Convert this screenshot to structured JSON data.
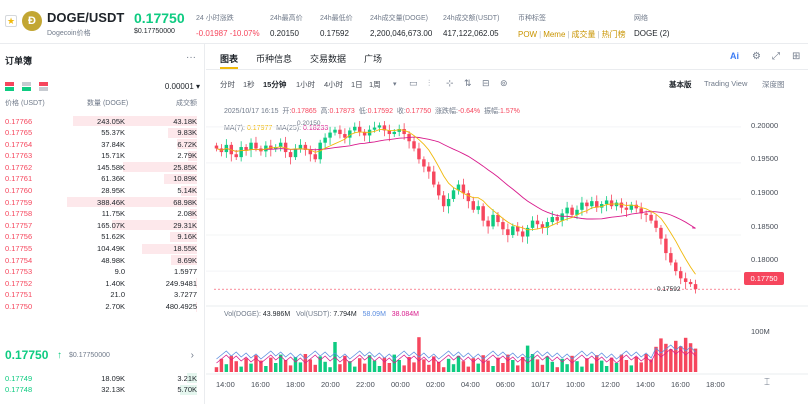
{
  "header": {
    "star": "★",
    "coin_glyph": "Ð",
    "pair": "DOGE/USDT",
    "pair_sub": "Dogecoin价格",
    "last_price": "0.17750",
    "last_price_usd": "$0.17750000",
    "stats": [
      {
        "label": "24 小时涨跌",
        "value": "-0.01987 -10.07%"
      },
      {
        "label": "24h最高价",
        "value": "0.20150"
      },
      {
        "label": "24h最低价",
        "value": "0.17592"
      },
      {
        "label": "24h成交量(DOGE)",
        "value": "2,200,046,673.00"
      },
      {
        "label": "24h成交额(USDT)",
        "value": "417,122,062.05"
      },
      {
        "label": "币种标签",
        "tags": [
          "POW",
          "Meme",
          "成交量",
          "热门榜"
        ]
      },
      {
        "label": "网络",
        "value": "DOGE (2)"
      }
    ]
  },
  "orderbook": {
    "title": "订单簿",
    "more": "···",
    "step": "0.00001 ▾",
    "headers": {
      "price": "价格 (USDT)",
      "qty": "数量 (DOGE)",
      "total": "成交额"
    },
    "asks": [
      {
        "price": "0.17766",
        "qty": "243.05K",
        "total": "43.18K",
        "depth": 0.95
      },
      {
        "price": "0.17765",
        "qty": "55.37K",
        "total": "9.83K",
        "depth": 0.22
      },
      {
        "price": "0.17764",
        "qty": "37.84K",
        "total": "6.72K",
        "depth": 0.15
      },
      {
        "price": "0.17763",
        "qty": "15.71K",
        "total": "2.79K",
        "depth": 0.07
      },
      {
        "price": "0.17762",
        "qty": "145.58K",
        "total": "25.85K",
        "depth": 0.57
      },
      {
        "price": "0.17761",
        "qty": "61.36K",
        "total": "10.89K",
        "depth": 0.25
      },
      {
        "price": "0.17760",
        "qty": "28.95K",
        "total": "5.14K",
        "depth": 0.12
      },
      {
        "price": "0.17759",
        "qty": "388.46K",
        "total": "68.98K",
        "depth": 1.0
      },
      {
        "price": "0.17758",
        "qty": "11.75K",
        "total": "2.08K",
        "depth": 0.05
      },
      {
        "price": "0.17757",
        "qty": "165.07K",
        "total": "29.31K",
        "depth": 0.65
      },
      {
        "price": "0.17756",
        "qty": "51.62K",
        "total": "9.16K",
        "depth": 0.21
      },
      {
        "price": "0.17755",
        "qty": "104.49K",
        "total": "18.55K",
        "depth": 0.42
      },
      {
        "price": "0.17754",
        "qty": "48.98K",
        "total": "8.69K",
        "depth": 0.2
      },
      {
        "price": "0.17753",
        "qty": "9.0",
        "total": "1.5977",
        "depth": 0.0
      },
      {
        "price": "0.17752",
        "qty": "1.40K",
        "total": "249.9481",
        "depth": 0.01
      },
      {
        "price": "0.17751",
        "qty": "21.0",
        "total": "3.7277",
        "depth": 0.0
      },
      {
        "price": "0.17750",
        "qty": "2.70K",
        "total": "480.4925",
        "depth": 0.01
      }
    ],
    "mid": {
      "price": "0.17750",
      "arrow": "↑",
      "usd": "$0.17750000",
      "chevron": "›"
    },
    "bids": [
      {
        "price": "0.17749",
        "qty": "18.09K",
        "total": "3.21K",
        "depth": 0.08
      },
      {
        "price": "0.17748",
        "qty": "32.13K",
        "total": "5.70K",
        "depth": 0.13
      }
    ]
  },
  "chart_panel": {
    "tabs": [
      "图表",
      "币种信息",
      "交易数据",
      "广场"
    ],
    "tab_icons": {
      "ai": "Ai",
      "settings": "⚙",
      "expand": "⤢",
      "grid": "⊞"
    },
    "intervals": [
      "分时",
      "1秒",
      "15分钟",
      "1小时",
      "4小时",
      "1日",
      "1周"
    ],
    "active_interval": "15分钟",
    "interval_more": "▾",
    "views": [
      "基本版",
      "Trading View",
      "深度图"
    ],
    "active_view": "基本版",
    "ohlc": {
      "time": "2025/10/17 16:15",
      "open_label": "开:",
      "open": "0.17865",
      "high_label": "高:",
      "high": "0.17873",
      "low_label": "低:",
      "low": "0.17592",
      "close_label": "收:",
      "close": "0.17750",
      "change_label": "涨跌幅:",
      "change": "-0.64%",
      "amp_label": "振幅:",
      "amp": "1.57%"
    },
    "ma_legend": {
      "ma7_label": "MA(7):",
      "ma7": "0.17977",
      "ma25_label": "MA(25):",
      "ma25": "0.18233"
    },
    "vol_legend": {
      "doge_label": "Vol(DOGE):",
      "doge": "43.986M",
      "usdt_label": "Vol(USDT):",
      "usdt": "7.794M",
      "v1": "58.09M",
      "v2": "38.084M"
    },
    "y_axis": [
      "0.20000",
      "0.19500",
      "0.19000",
      "0.18500",
      "0.18000"
    ],
    "y_vol": "100M",
    "current_price_tag": "0.17750",
    "low_marker": "0.17592",
    "high_marker": "0.20150",
    "x_axis": [
      "14:00",
      "16:00",
      "18:00",
      "20:00",
      "22:00",
      "00:00",
      "02:00",
      "04:00",
      "06:00",
      "10/17",
      "10:00",
      "12:00",
      "14:00",
      "16:00",
      "18:00"
    ],
    "colors": {
      "up": "#0ecb81",
      "down": "#f6465d",
      "ma7": "#f0b90b",
      "ma25": "#d81b8c"
    }
  },
  "chart_data": {
    "type": "candlestick",
    "x": [
      "14:00",
      "16:00",
      "18:00",
      "20:00",
      "22:00",
      "00:00",
      "02:00",
      "04:00",
      "06:00",
      "10/17",
      "10:00",
      "12:00",
      "14:00",
      "16:00",
      "18:00"
    ],
    "ylim": [
      0.176,
      0.2015
    ],
    "close_path": [
      0.197,
      0.1965,
      0.1975,
      0.1962,
      0.1958,
      0.1972,
      0.1968,
      0.1978,
      0.197,
      0.1966,
      0.1974,
      0.1969,
      0.1972,
      0.1978,
      0.1965,
      0.1958,
      0.197,
      0.1975,
      0.1968,
      0.1962,
      0.1955,
      0.1978,
      0.1985,
      0.1992,
      0.1996,
      0.199,
      0.1985,
      0.1995,
      0.2,
      0.1993,
      0.1988,
      0.1996,
      0.1999,
      0.2002,
      0.1995,
      0.199,
      0.1993,
      0.1997,
      0.199,
      0.198,
      0.197,
      0.1955,
      0.1945,
      0.1938,
      0.192,
      0.1905,
      0.189,
      0.19,
      0.1912,
      0.192,
      0.1908,
      0.1897,
      0.1885,
      0.189,
      0.187,
      0.1862,
      0.1878,
      0.1868,
      0.1858,
      0.185,
      0.1862,
      0.1855,
      0.1848,
      0.186,
      0.187,
      0.1865,
      0.186,
      0.1868,
      0.1875,
      0.187,
      0.188,
      0.1888,
      0.1878,
      0.1885,
      0.1895,
      0.189,
      0.1897,
      0.1888,
      0.1893,
      0.1898,
      0.189,
      0.1895,
      0.1888,
      0.1885,
      0.1892,
      0.1887,
      0.188,
      0.1878,
      0.187,
      0.186,
      0.1845,
      0.1825,
      0.1812,
      0.18,
      0.179,
      0.1785,
      0.1782,
      0.1775
    ],
    "series": [
      {
        "name": "MA(7)",
        "value": 0.17977
      },
      {
        "name": "MA(25)",
        "value": 0.18233
      }
    ],
    "volume_ylim": [
      0,
      180
    ],
    "volume_tick": "100M"
  }
}
